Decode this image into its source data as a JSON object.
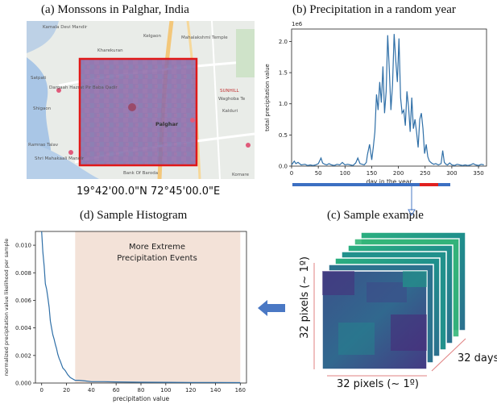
{
  "panel_a": {
    "caption": "(a) Monssons in Palghar, India",
    "coords": "19°42'00.0\"N 72°45'00.0\"E",
    "map_labels": [
      "Kamala Devi Mandir",
      "Kelgaon",
      "Mahalakshmi Temple",
      "Kharekuran",
      "Satpati",
      "Dargaah Hazrat Pir Baba Qadir",
      "Shigaon",
      "Shri Mahakaali Mandir",
      "Palghar",
      "Waghoba Te",
      "Kalduri",
      "SUNHILL",
      "Bank Of Baroda",
      "Komare",
      "Ramrao Talav"
    ]
  },
  "panel_b": {
    "caption": "(b) Precipitation in a random year"
  },
  "panel_c": {
    "caption": "(c) Sample example",
    "x_label": "32 pixels  (~ 1º)",
    "y_label": "32 pixels  (~ 1º)",
    "z_label": "32 days"
  },
  "panel_d": {
    "caption": "(d) Sample Histogram",
    "region_label_line1": "More Extreme",
    "region_label_line2": "Precipitation Events"
  },
  "colors": {
    "line": "#2f6fa7",
    "region": "#f3e2d8",
    "highlight": "#e02020",
    "timeline_blue": "#3b6fc2",
    "arrow": "#4a78c4"
  },
  "chart_data": [
    {
      "type": "line",
      "title": "",
      "xlabel": "day in the year",
      "ylabel": "total precipitation value",
      "scale_label": "1e6",
      "xlim": [
        0,
        365
      ],
      "ylim": [
        0,
        2.2
      ],
      "xticks": [
        0,
        50,
        100,
        150,
        200,
        250,
        300,
        350
      ],
      "yticks": [
        0.0,
        0.5,
        1.0,
        1.5,
        2.0
      ],
      "ytick_labels": [
        "0.0",
        "0.5",
        "1.0",
        "1.5",
        "2.0"
      ],
      "x": [
        0,
        5,
        8,
        12,
        18,
        25,
        30,
        35,
        40,
        45,
        50,
        55,
        58,
        62,
        66,
        70,
        75,
        80,
        85,
        90,
        95,
        100,
        105,
        110,
        115,
        120,
        124,
        128,
        132,
        136,
        140,
        142,
        146,
        150,
        153,
        156,
        159,
        162,
        165,
        168,
        171,
        174,
        177,
        180,
        183,
        186,
        189,
        192,
        195,
        198,
        201,
        204,
        207,
        210,
        213,
        216,
        219,
        222,
        225,
        228,
        231,
        234,
        237,
        240,
        243,
        246,
        249,
        252,
        255,
        258,
        262,
        266,
        270,
        275,
        280,
        283,
        286,
        289,
        292,
        296,
        300,
        305,
        310,
        315,
        320,
        325,
        330,
        335,
        340,
        345,
        350,
        355,
        360
      ],
      "y": [
        0.02,
        0.08,
        0.04,
        0.06,
        0.02,
        0.03,
        0.01,
        0.02,
        0.01,
        0.02,
        0.04,
        0.13,
        0.05,
        0.03,
        0.02,
        0.04,
        0.02,
        0.01,
        0.03,
        0.02,
        0.06,
        0.02,
        0.03,
        0.02,
        0.01,
        0.05,
        0.13,
        0.04,
        0.03,
        0.02,
        0.06,
        0.18,
        0.35,
        0.1,
        0.3,
        0.55,
        1.15,
        0.9,
        1.35,
        1.02,
        1.6,
        0.85,
        1.2,
        2.1,
        1.55,
        0.9,
        1.3,
        2.12,
        1.7,
        1.35,
        2.05,
        1.1,
        0.85,
        0.9,
        0.65,
        1.2,
        0.95,
        0.55,
        1.1,
        0.6,
        0.75,
        0.55,
        0.3,
        0.75,
        0.85,
        0.6,
        0.2,
        0.35,
        0.15,
        0.08,
        0.05,
        0.03,
        0.04,
        0.02,
        0.04,
        0.25,
        0.06,
        0.03,
        0.02,
        0.05,
        0.02,
        0.01,
        0.03,
        0.02,
        0.01,
        0.02,
        0.01,
        0.02,
        0.04,
        0.02,
        0.01,
        0.03,
        0.02
      ]
    },
    {
      "type": "line",
      "title": "",
      "xlabel": "precipitation value",
      "ylabel": "normalized precipitation value likelihood per sample",
      "xlim": [
        -5,
        165
      ],
      "ylim": [
        0,
        0.011
      ],
      "xticks": [
        0,
        20,
        40,
        60,
        80,
        100,
        120,
        140,
        160
      ],
      "yticks": [
        0.0,
        0.002,
        0.004,
        0.006,
        0.008,
        0.01
      ],
      "ytick_labels": [
        "0.000",
        "0.002",
        "0.004",
        "0.006",
        "0.008",
        "0.010"
      ],
      "shaded_region_x": [
        27,
        160
      ],
      "x": [
        0,
        1,
        2,
        3,
        4,
        5,
        6,
        7,
        8,
        9,
        10,
        11,
        12,
        13,
        14,
        15,
        17,
        19,
        21,
        23,
        25,
        27,
        30,
        35,
        40,
        50,
        60,
        80,
        100,
        120,
        140,
        160
      ],
      "y": [
        0.011,
        0.0095,
        0.0085,
        0.0072,
        0.0068,
        0.0062,
        0.0055,
        0.0045,
        0.004,
        0.0035,
        0.0032,
        0.0028,
        0.0025,
        0.0021,
        0.0018,
        0.0016,
        0.0011,
        0.0009,
        0.0006,
        0.0004,
        0.0003,
        0.0002,
        0.0002,
        0.00015,
        0.0001,
        0.0001,
        8e-05,
        6e-05,
        5e-05,
        4e-05,
        4e-05,
        3e-05
      ]
    }
  ]
}
